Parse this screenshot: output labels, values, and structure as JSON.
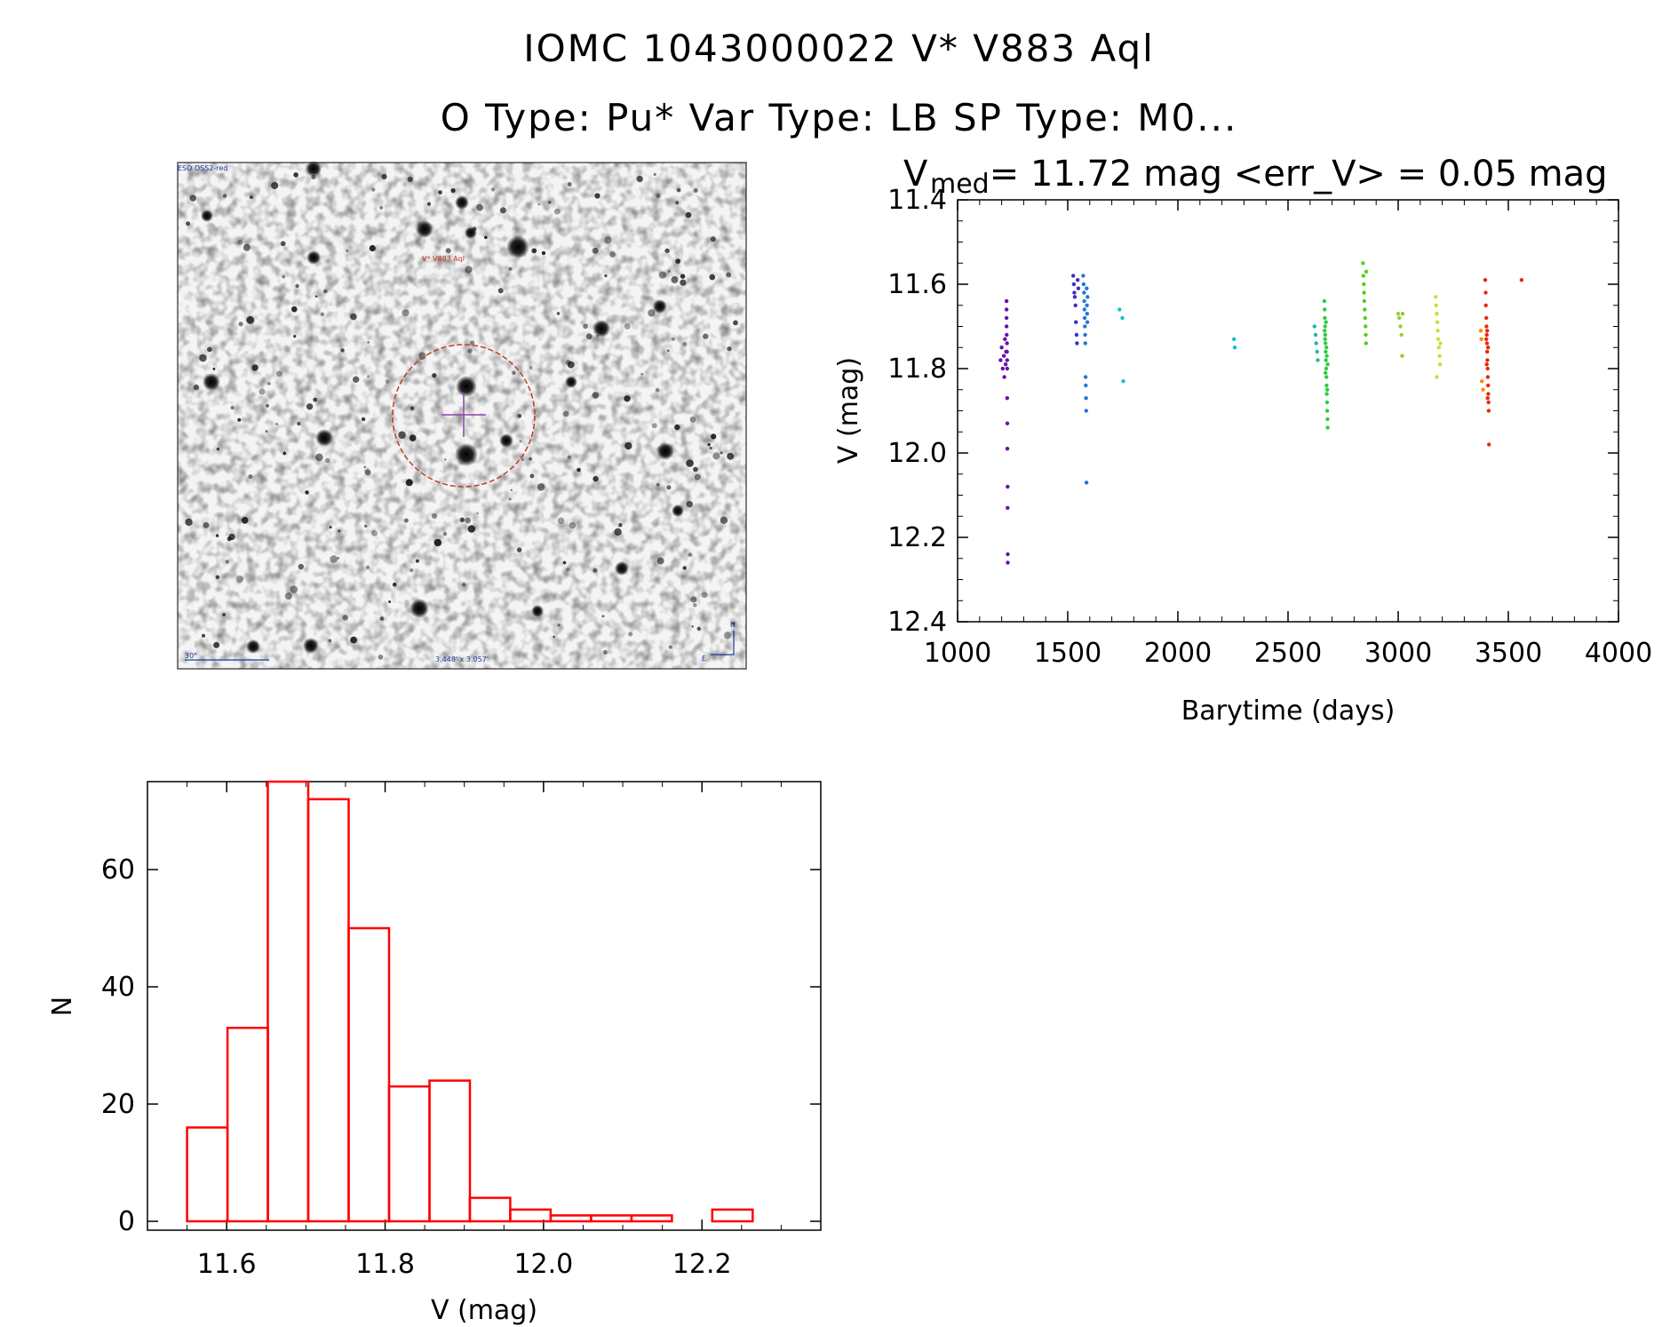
{
  "header": {
    "title_line1": "IOMC 1043000022    V* V883 Aql",
    "title_line2": "O Type: Pu*  Var Type: LB  SP Type: M0..."
  },
  "image_panel": {
    "survey_label": "ESO DSS2-red",
    "target_label": "V* V883 Aql",
    "scale_label": "30\"",
    "size_label": "3.448' x 3.057'",
    "north_label": "N",
    "east_label": "E",
    "colors": {
      "circle": "#c0392b",
      "crosshair": "#8e44ad",
      "labels": "#1a3a9c",
      "target_label": "#c0392b"
    }
  },
  "chart_data": [
    {
      "type": "scatter",
      "title_main": "V",
      "title_sub": "med",
      "title_rest": " = 11.72 mag <err_V> = 0.05 mag",
      "xlabel": "Barytime (days)",
      "ylabel": "V (mag)",
      "xlim": [
        1000,
        4000
      ],
      "ylim": [
        12.4,
        11.4
      ],
      "y_reversed": true,
      "xticks": [
        1000,
        1500,
        2000,
        2500,
        3000,
        3500,
        4000
      ],
      "yticks": [
        11.4,
        11.6,
        11.8,
        12.0,
        12.2,
        12.4
      ],
      "ytick_labels": [
        "11.4",
        "11.6",
        "11.8",
        "12.0",
        "12.2",
        "12.4"
      ],
      "series": [
        {
          "color": "#6a0dad",
          "points": [
            [
              1195,
              11.78
            ],
            [
              1200,
              11.75
            ],
            [
              1205,
              11.8
            ],
            [
              1210,
              11.77
            ],
            [
              1212,
              11.82
            ],
            [
              1215,
              11.73
            ],
            [
              1218,
              11.79
            ],
            [
              1220,
              11.76
            ],
            [
              1222,
              11.64
            ],
            [
              1222,
              11.66
            ],
            [
              1222,
              11.68
            ],
            [
              1222,
              11.7
            ],
            [
              1223,
              11.72
            ],
            [
              1224,
              11.74
            ],
            [
              1224,
              11.76
            ],
            [
              1225,
              11.78
            ],
            [
              1225,
              11.8
            ],
            [
              1225,
              11.87
            ],
            [
              1226,
              11.93
            ],
            [
              1226,
              11.99
            ],
            [
              1227,
              12.08
            ],
            [
              1227,
              12.13
            ],
            [
              1228,
              12.24
            ],
            [
              1228,
              12.26
            ]
          ]
        },
        {
          "color": "#3b2fc4",
          "points": [
            [
              1525,
              11.58
            ],
            [
              1528,
              11.6
            ],
            [
              1530,
              11.62
            ],
            [
              1532,
              11.63
            ],
            [
              1535,
              11.65
            ],
            [
              1537,
              11.69
            ],
            [
              1540,
              11.72
            ],
            [
              1542,
              11.74
            ],
            [
              1545,
              11.59
            ],
            [
              1548,
              11.61
            ]
          ]
        },
        {
          "color": "#1f78d1",
          "points": [
            [
              1570,
              11.58
            ],
            [
              1572,
              11.6
            ],
            [
              1574,
              11.62
            ],
            [
              1575,
              11.64
            ],
            [
              1576,
              11.66
            ],
            [
              1577,
              11.68
            ],
            [
              1578,
              11.7
            ],
            [
              1579,
              11.72
            ],
            [
              1580,
              11.74
            ],
            [
              1581,
              11.82
            ],
            [
              1582,
              11.84
            ],
            [
              1583,
              11.87
            ],
            [
              1584,
              11.9
            ],
            [
              1585,
              12.07
            ],
            [
              1586,
              11.61
            ],
            [
              1587,
              11.65
            ],
            [
              1588,
              11.67
            ],
            [
              1589,
              11.69
            ],
            [
              1590,
              11.63
            ]
          ]
        },
        {
          "color": "#17becf",
          "points": [
            [
              1735,
              11.66
            ],
            [
              1748,
              11.68
            ],
            [
              1752,
              11.83
            ],
            [
              2255,
              11.73
            ],
            [
              2258,
              11.75
            ]
          ]
        },
        {
          "color": "#1abc9c",
          "points": [
            [
              2620,
              11.7
            ],
            [
              2625,
              11.72
            ],
            [
              2628,
              11.74
            ],
            [
              2632,
              11.76
            ],
            [
              2635,
              11.78
            ]
          ]
        },
        {
          "color": "#2ecc40",
          "points": [
            [
              2665,
              11.64
            ],
            [
              2666,
              11.66
            ],
            [
              2667,
              11.68
            ],
            [
              2668,
              11.7
            ],
            [
              2669,
              11.72
            ],
            [
              2670,
              11.74
            ],
            [
              2671,
              11.76
            ],
            [
              2672,
              11.78
            ],
            [
              2673,
              11.8
            ],
            [
              2674,
              11.82
            ],
            [
              2675,
              11.84
            ],
            [
              2676,
              11.86
            ],
            [
              2677,
              11.88
            ],
            [
              2678,
              11.9
            ],
            [
              2679,
              11.92
            ],
            [
              2680,
              11.94
            ],
            [
              2668,
              11.73
            ],
            [
              2672,
              11.69
            ],
            [
              2676,
              11.77
            ],
            [
              2670,
              11.81
            ],
            [
              2674,
              11.75
            ],
            [
              2678,
              11.85
            ],
            [
              2666,
              11.71
            ],
            [
              2680,
              11.79
            ]
          ]
        },
        {
          "color": "#52d017",
          "points": [
            [
              2840,
              11.55
            ],
            [
              2842,
              11.58
            ],
            [
              2844,
              11.6
            ],
            [
              2845,
              11.62
            ],
            [
              2846,
              11.64
            ],
            [
              2848,
              11.66
            ],
            [
              2850,
              11.68
            ],
            [
              2852,
              11.7
            ],
            [
              2853,
              11.72
            ],
            [
              2854,
              11.74
            ],
            [
              2855,
              11.57
            ]
          ]
        },
        {
          "color": "#9acd32",
          "points": [
            [
              3000,
              11.67
            ],
            [
              3005,
              11.68
            ],
            [
              3010,
              11.7
            ],
            [
              3015,
              11.72
            ],
            [
              3018,
              11.77
            ],
            [
              3020,
              11.67
            ]
          ]
        },
        {
          "color": "#cddc39",
          "points": [
            [
              3170,
              11.63
            ],
            [
              3172,
              11.65
            ],
            [
              3175,
              11.67
            ],
            [
              3178,
              11.69
            ],
            [
              3180,
              11.71
            ],
            [
              3182,
              11.73
            ],
            [
              3185,
              11.75
            ],
            [
              3188,
              11.77
            ],
            [
              3190,
              11.79
            ],
            [
              3175,
              11.82
            ],
            [
              3192,
              11.74
            ]
          ]
        },
        {
          "color": "#ff8c00",
          "points": [
            [
              3375,
              11.71
            ],
            [
              3378,
              11.73
            ],
            [
              3380,
              11.83
            ],
            [
              3385,
              11.85
            ]
          ]
        },
        {
          "color": "#e8280e",
          "points": [
            [
              3395,
              11.59
            ],
            [
              3397,
              11.62
            ],
            [
              3398,
              11.65
            ],
            [
              3400,
              11.68
            ],
            [
              3401,
              11.7
            ],
            [
              3402,
              11.72
            ],
            [
              3403,
              11.74
            ],
            [
              3404,
              11.76
            ],
            [
              3405,
              11.78
            ],
            [
              3406,
              11.8
            ],
            [
              3407,
              11.82
            ],
            [
              3408,
              11.84
            ],
            [
              3409,
              11.86
            ],
            [
              3410,
              11.88
            ],
            [
              3411,
              11.9
            ],
            [
              3412,
              11.98
            ],
            [
              3400,
              11.73
            ],
            [
              3404,
              11.71
            ],
            [
              3408,
              11.75
            ],
            [
              3402,
              11.79
            ],
            [
              3406,
              11.87
            ],
            [
              3560,
              11.59
            ]
          ]
        }
      ]
    },
    {
      "type": "bar",
      "histogram": true,
      "xlabel": "V (mag)",
      "ylabel": "N",
      "xlim": [
        11.5,
        12.35
      ],
      "ylim": [
        0,
        75
      ],
      "xticks": [
        11.6,
        11.8,
        12.0,
        12.2
      ],
      "xtick_labels": [
        "11.6",
        "11.8",
        "12.0",
        "12.2"
      ],
      "yticks": [
        0,
        20,
        40,
        60
      ],
      "ytick_labels": [
        "0",
        "20",
        "40",
        "60"
      ],
      "bar_color": "#ff0000",
      "bin_edges": [
        11.55,
        11.601,
        11.652,
        11.703,
        11.754,
        11.805,
        11.856,
        11.907,
        11.958,
        12.009,
        12.06,
        12.111,
        12.162,
        12.213,
        12.264
      ],
      "counts": [
        16,
        33,
        75,
        72,
        50,
        23,
        24,
        4,
        2,
        1,
        1,
        1,
        0,
        2
      ]
    }
  ]
}
